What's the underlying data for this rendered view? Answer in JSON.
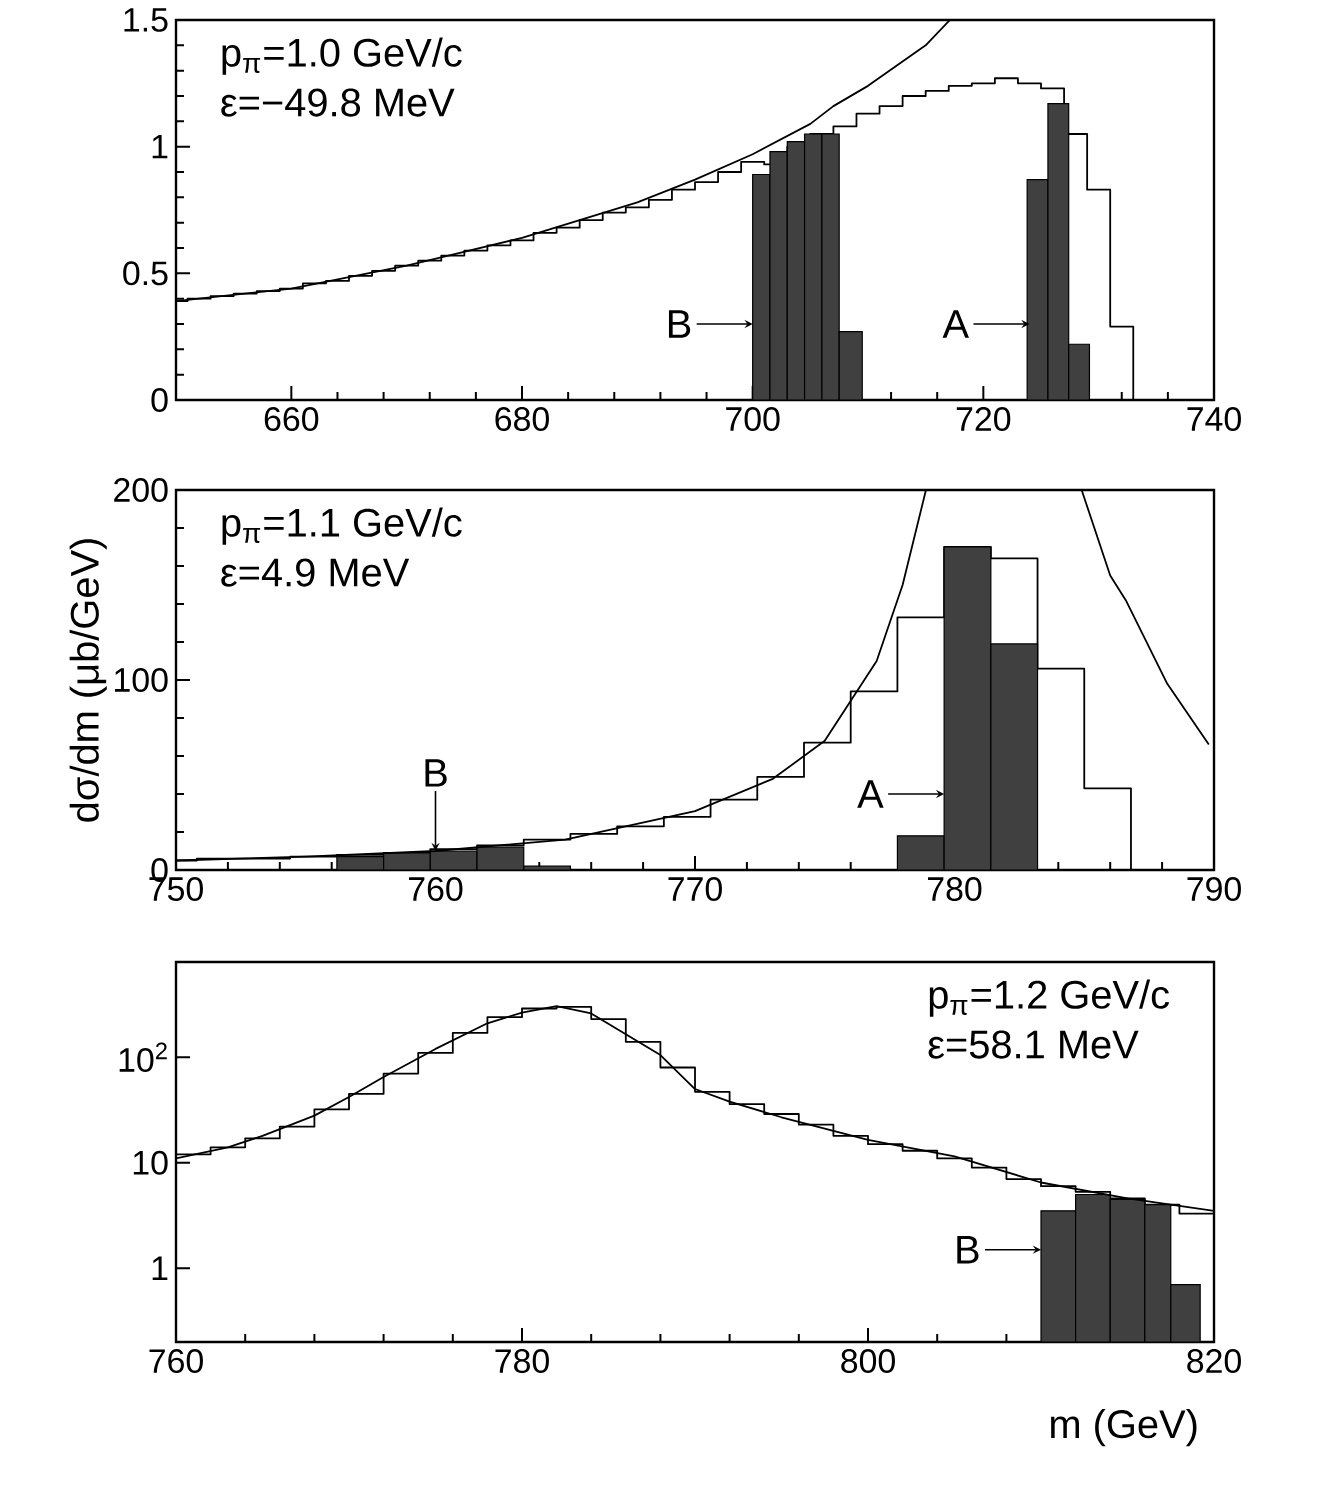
{
  "chart_data": [
    {
      "type": "histogram",
      "xlim": [
        650,
        740
      ],
      "ylim": [
        0,
        1.5
      ],
      "xticks": [
        660,
        680,
        700,
        720,
        740
      ],
      "yticks": [
        0,
        0.5,
        1,
        1.5
      ],
      "series": [
        {
          "type": "step",
          "color": "#000000",
          "x": [
            650,
            651,
            653,
            655,
            657,
            659,
            661,
            663,
            665,
            667,
            669,
            671,
            673,
            675,
            677,
            679,
            681,
            683,
            685,
            687,
            689,
            691,
            693,
            695,
            697,
            699,
            701,
            703,
            705,
            707,
            709,
            711,
            713,
            715,
            717,
            719,
            721,
            723,
            725,
            727,
            729,
            731,
            733
          ],
          "values": [
            0.39,
            0.4,
            0.41,
            0.42,
            0.43,
            0.44,
            0.46,
            0.47,
            0.49,
            0.51,
            0.53,
            0.55,
            0.57,
            0.59,
            0.61,
            0.63,
            0.66,
            0.68,
            0.71,
            0.74,
            0.76,
            0.79,
            0.83,
            0.86,
            0.9,
            0.94,
            0.93,
            1.0,
            1.05,
            1.08,
            1.13,
            1.16,
            1.2,
            1.22,
            1.24,
            1.25,
            1.27,
            1.25,
            1.23,
            1.05,
            0.83,
            0.29,
            0
          ]
        },
        {
          "type": "histogram",
          "color": "#404040",
          "bins": [
            700,
            701.5,
            703,
            704.5,
            706,
            707.5,
            709.5
          ],
          "values": [
            0.89,
            0.98,
            1.02,
            1.05,
            1.05,
            0.27
          ]
        },
        {
          "type": "histogram",
          "color": "#404040",
          "bins": [
            723.8,
            725.6,
            727.4,
            729.2
          ],
          "values": [
            0.87,
            1.17,
            0.22
          ]
        },
        {
          "type": "line",
          "color": "#000000",
          "x": [
            650,
            660,
            670,
            680,
            690,
            695,
            700,
            705,
            707,
            710,
            715,
            717.1
          ],
          "values": [
            0.39,
            0.44,
            0.53,
            0.64,
            0.78,
            0.87,
            0.97,
            1.09,
            1.16,
            1.24,
            1.4,
            1.5
          ]
        }
      ],
      "annotations": [
        "p$_{π}$=1.0 GeV/c",
        "ε=−49.8 MeV",
        {
          "text": "B",
          "x": 700,
          "y": 0.3
        },
        {
          "text": "A",
          "x": 724,
          "y": 0.3
        }
      ]
    },
    {
      "type": "histogram",
      "xlim": [
        750,
        790
      ],
      "ylim": [
        0,
        200
      ],
      "xticks": [
        750,
        760,
        770,
        780,
        790
      ],
      "yticks": [
        0,
        100,
        200
      ],
      "ylabel": "dσ/dm  (μb/GeV)",
      "series": [
        {
          "type": "step",
          "color": "#000000",
          "x": [
            750,
            750.8,
            752.6,
            754.4,
            756.2,
            758,
            759.8,
            761.6,
            763.4,
            765.2,
            767,
            768.8,
            770.6,
            772.4,
            774.2,
            776,
            777.8,
            779.6,
            781.4,
            783.2,
            785,
            786.8
          ],
          "values": [
            5,
            6,
            6,
            7,
            8,
            9,
            11,
            13,
            16,
            19,
            23,
            28,
            37,
            49,
            67,
            94,
            133,
            170,
            164,
            106,
            43,
            0
          ]
        },
        {
          "type": "histogram",
          "color": "#404040",
          "bins": [
            756.2,
            758,
            759.8,
            761.6,
            763.4,
            765.2
          ],
          "values": [
            7,
            9,
            10,
            12,
            2
          ]
        },
        {
          "type": "histogram",
          "color": "#404040",
          "bins": [
            777.8,
            779.6,
            781.4,
            783.2
          ],
          "values": [
            18,
            170,
            119
          ]
        },
        {
          "type": "line",
          "color": "#000000",
          "x": [
            750,
            755,
            760,
            765,
            770,
            773,
            775,
            777,
            778,
            778.9,
            781,
            784.9,
            786,
            786.6,
            788.2,
            789.8
          ],
          "values": [
            5,
            7,
            10,
            16,
            31,
            48,
            68,
            110,
            150,
            200,
            null,
            200,
            155,
            142,
            98,
            66
          ]
        }
      ],
      "annotations": [
        "p$_{π}$=1.1 GeV/c",
        "ε=4.9 MeV",
        {
          "text": "B",
          "x": 760,
          "y": 10
        },
        {
          "text": "A",
          "x": 779.6,
          "y": 40
        }
      ]
    },
    {
      "type": "histogram",
      "log": true,
      "xlim": [
        760,
        820
      ],
      "ylim": [
        0.2,
        800
      ],
      "xticks": [
        760,
        780,
        800,
        820
      ],
      "yticks": [
        1,
        10,
        {
          "value": 100,
          "label": "10$^{2}$"
        }
      ],
      "xlabel": "m  (GeV)",
      "series": [
        {
          "type": "step",
          "color": "#000000",
          "x": [
            760,
            762,
            764,
            766,
            768,
            770,
            772,
            774,
            776,
            778,
            780,
            782,
            784,
            786,
            788,
            790,
            792,
            794,
            796,
            798,
            800,
            802,
            804,
            806,
            808,
            810,
            812,
            814,
            816,
            818,
            820
          ],
          "values": [
            12,
            14,
            17,
            22,
            32,
            45,
            70,
            110,
            170,
            240,
            290,
            300,
            230,
            140,
            80,
            47,
            36,
            29,
            23,
            18,
            15,
            13,
            11,
            9,
            7,
            6,
            5.3,
            4.6,
            4,
            3.3,
            3.3
          ]
        },
        {
          "type": "histogram",
          "color": "#404040",
          "bins": [
            810,
            812,
            814,
            816,
            817.5,
            819.2
          ],
          "values": [
            3.5,
            5,
            4.5,
            4,
            0.7
          ]
        },
        {
          "type": "line",
          "color": "#000000",
          "x": [
            760,
            763,
            765,
            768,
            770,
            772,
            775,
            778,
            780,
            782,
            784,
            786,
            788,
            790,
            792,
            795,
            800,
            805,
            810,
            815,
            820
          ],
          "values": [
            11,
            14,
            18,
            28,
            42,
            65,
            120,
            210,
            265,
            305,
            260,
            165,
            105,
            50,
            38,
            27,
            16.5,
            11.5,
            6.5,
            4.6,
            3.5
          ]
        }
      ],
      "annotations": [
        "p$_{π}$=1.2 GeV/c",
        "ε=58.1 MeV",
        {
          "text": "B",
          "x": 810,
          "y": 1.5
        }
      ]
    }
  ]
}
